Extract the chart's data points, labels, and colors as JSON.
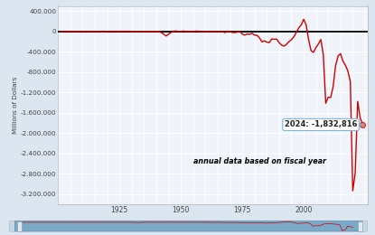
{
  "title": "",
  "ylabel": "Millions of Dollars",
  "annotation_text": "2024: -1,832,816",
  "annotation_note": "annual data based on fiscal year",
  "bg_color": "#dce6f1",
  "plot_bg_color": "#f0f4fa",
  "line_color": "#cc0000",
  "zero_line_color": "#000000",
  "ylim": [
    -3400000,
    500000
  ],
  "yticks": [
    400000,
    0,
    -400000,
    -800000,
    -1200000,
    -1600000,
    -2000000,
    -2400000,
    -2800000,
    -3200000
  ],
  "xticks": [
    1925,
    1950,
    1975,
    2000
  ],
  "grid_color": "#d8e4f0",
  "scrollbar_color": "#7aaac8",
  "scrollbar_bg": "#c5d8e8",
  "xlim_left": 1900,
  "xlim_right": 2026
}
